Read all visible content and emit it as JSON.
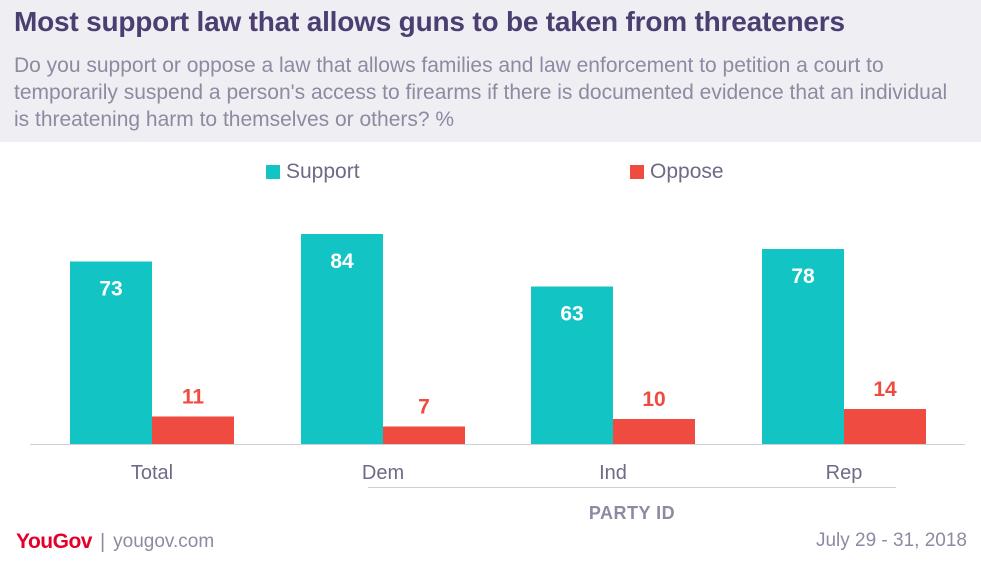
{
  "header": {
    "title": "Most support law that allows guns to be taken from threateners",
    "subtitle": "Do you support or oppose a law that allows families and law enforcement to petition a court to temporarily suspend a person's access to firearms if there is documented evidence that an individual is threatening harm to themselves or others? %"
  },
  "chart_data": {
    "type": "bar",
    "categories": [
      "Total",
      "Dem",
      "Ind",
      "Rep"
    ],
    "series": [
      {
        "name": "Support",
        "values": [
          73,
          84,
          63,
          78
        ],
        "color": "#12c4c4"
      },
      {
        "name": "Oppose",
        "values": [
          11,
          7,
          10,
          14
        ],
        "color": "#f04b41"
      }
    ],
    "group_label": "PARTY ID",
    "ylim": [
      0,
      100
    ],
    "legend_position": "top",
    "grid": false
  },
  "footer": {
    "brand": "YouGov",
    "url": "yougov.com",
    "date": "July 29 - 31, 2018"
  }
}
